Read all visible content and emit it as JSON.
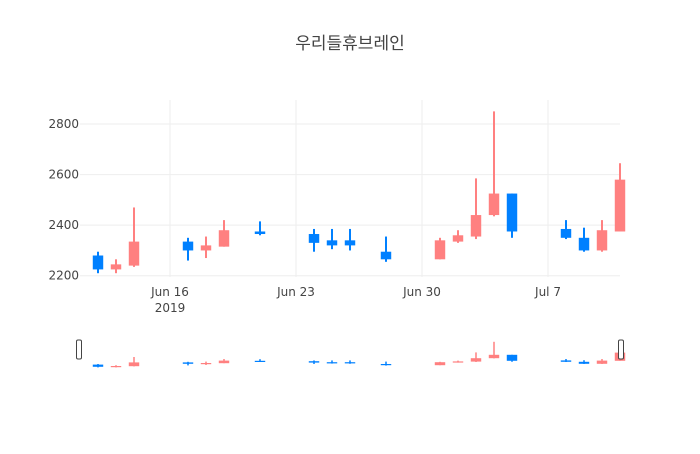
{
  "chart_data": {
    "type": "candlestick",
    "title": "우리들휴브레인",
    "x_ticks": [
      {
        "date": "2019-06-16",
        "label": "Jun 16",
        "sublabel": "2019"
      },
      {
        "date": "2019-06-23",
        "label": "Jun 23",
        "sublabel": ""
      },
      {
        "date": "2019-06-30",
        "label": "Jun 30",
        "sublabel": ""
      },
      {
        "date": "2019-07-07",
        "label": "Jul 7",
        "sublabel": ""
      }
    ],
    "y_ticks": [
      2200,
      2400,
      2600,
      2800
    ],
    "ylim": [
      2195,
      2895
    ],
    "xlim": [
      "2019-06-11",
      "2019-07-11"
    ],
    "grid": true,
    "increasing_color": "#FF8080",
    "decreasing_color": "#0080FF",
    "range_slider": true,
    "candles": [
      {
        "date": "2019-06-12",
        "open": 2280,
        "high": 2295,
        "low": 2210,
        "close": 2225
      },
      {
        "date": "2019-06-13",
        "open": 2225,
        "high": 2265,
        "low": 2210,
        "close": 2245
      },
      {
        "date": "2019-06-14",
        "open": 2240,
        "high": 2470,
        "low": 2235,
        "close": 2335
      },
      {
        "date": "2019-06-17",
        "open": 2335,
        "high": 2350,
        "low": 2260,
        "close": 2300
      },
      {
        "date": "2019-06-18",
        "open": 2300,
        "high": 2355,
        "low": 2270,
        "close": 2320
      },
      {
        "date": "2019-06-19",
        "open": 2315,
        "high": 2420,
        "low": 2315,
        "close": 2380
      },
      {
        "date": "2019-06-21",
        "open": 2375,
        "high": 2415,
        "low": 2360,
        "close": 2365
      },
      {
        "date": "2019-06-24",
        "open": 2365,
        "high": 2385,
        "low": 2295,
        "close": 2330
      },
      {
        "date": "2019-06-25",
        "open": 2340,
        "high": 2385,
        "low": 2305,
        "close": 2320
      },
      {
        "date": "2019-06-26",
        "open": 2340,
        "high": 2385,
        "low": 2300,
        "close": 2320
      },
      {
        "date": "2019-06-28",
        "open": 2295,
        "high": 2355,
        "low": 2255,
        "close": 2265
      },
      {
        "date": "2019-07-01",
        "open": 2265,
        "high": 2350,
        "low": 2265,
        "close": 2340
      },
      {
        "date": "2019-07-02",
        "open": 2335,
        "high": 2380,
        "low": 2330,
        "close": 2360
      },
      {
        "date": "2019-07-03",
        "open": 2355,
        "high": 2585,
        "low": 2345,
        "close": 2440
      },
      {
        "date": "2019-07-04",
        "open": 2440,
        "high": 2850,
        "low": 2435,
        "close": 2525
      },
      {
        "date": "2019-07-05",
        "open": 2525,
        "high": 2525,
        "low": 2350,
        "close": 2375
      },
      {
        "date": "2019-07-08",
        "open": 2385,
        "high": 2420,
        "low": 2345,
        "close": 2350
      },
      {
        "date": "2019-07-09",
        "open": 2350,
        "high": 2390,
        "low": 2295,
        "close": 2300
      },
      {
        "date": "2019-07-10",
        "open": 2300,
        "high": 2420,
        "low": 2295,
        "close": 2380
      },
      {
        "date": "2019-07-11",
        "open": 2375,
        "high": 2645,
        "low": 2375,
        "close": 2580
      }
    ]
  }
}
